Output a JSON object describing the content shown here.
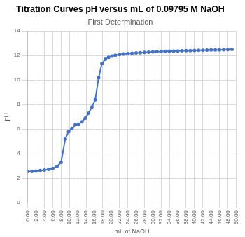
{
  "chart_data": {
    "type": "line",
    "title": "Titration Curves pH versus mL of 0.09795 M NaOH",
    "subtitle": "First Determination",
    "x_label": "mL of NaOH",
    "y_label": "pH",
    "x": [
      0,
      1,
      2,
      3,
      4,
      5,
      6,
      7,
      8,
      9,
      9.8,
      10.6,
      11.4,
      12.2,
      13,
      13.8,
      14.6,
      15.4,
      16.2,
      17,
      17.8,
      18.6,
      19.4,
      20.2,
      21,
      22,
      23,
      24,
      25,
      26,
      27,
      28,
      29,
      30,
      31,
      32,
      33,
      34,
      35,
      36,
      37,
      38,
      39,
      40,
      41,
      42,
      43,
      44,
      45,
      46,
      47,
      48,
      49
    ],
    "values": [
      2.55,
      2.56,
      2.58,
      2.62,
      2.67,
      2.72,
      2.8,
      2.95,
      3.3,
      5.2,
      5.8,
      6.05,
      6.35,
      6.4,
      6.6,
      6.9,
      7.3,
      7.8,
      8.4,
      10.2,
      11.35,
      11.7,
      11.85,
      11.95,
      12.03,
      12.08,
      12.12,
      12.15,
      12.18,
      12.21,
      12.23,
      12.25,
      12.27,
      12.29,
      12.31,
      12.32,
      12.34,
      12.35,
      12.36,
      12.37,
      12.38,
      12.39,
      12.4,
      12.41,
      12.42,
      12.43,
      12.44,
      12.45,
      12.46,
      12.46,
      12.47,
      12.48,
      12.49
    ],
    "color": "#4472c4",
    "marker": "circle",
    "line_style": "solid",
    "xlim": [
      0,
      50
    ],
    "xticks": [
      {
        "value": 0,
        "label": "0.00"
      },
      {
        "value": 2,
        "label": "2.00"
      },
      {
        "value": 4,
        "label": "4.00"
      },
      {
        "value": 6,
        "label": "6.00"
      },
      {
        "value": 8,
        "label": "8.00"
      },
      {
        "value": 10,
        "label": "10.00"
      },
      {
        "value": 12,
        "label": "12.00"
      },
      {
        "value": 14,
        "label": "14.00"
      },
      {
        "value": 16,
        "label": "16.00"
      },
      {
        "value": 18,
        "label": "18.00"
      },
      {
        "value": 20,
        "label": "20.00"
      },
      {
        "value": 22,
        "label": "22.00"
      },
      {
        "value": 24,
        "label": "24.00"
      },
      {
        "value": 26,
        "label": "26.00"
      },
      {
        "value": 28,
        "label": "28.00"
      },
      {
        "value": 30,
        "label": "30.00"
      },
      {
        "value": 32,
        "label": "32.00"
      },
      {
        "value": 34,
        "label": "34.00"
      },
      {
        "value": 36,
        "label": "36.00"
      },
      {
        "value": 38,
        "label": "38.00"
      },
      {
        "value": 40,
        "label": "40.00"
      },
      {
        "value": 42,
        "label": "42.00"
      },
      {
        "value": 44,
        "label": "44.00"
      },
      {
        "value": 46,
        "label": "46.00"
      },
      {
        "value": 48,
        "label": "48.00"
      },
      {
        "value": 50,
        "label": "50.00"
      }
    ],
    "ylim": [
      0,
      14
    ],
    "yticks": [
      0,
      2,
      4,
      6,
      8,
      10,
      12,
      14
    ],
    "grid": true
  }
}
